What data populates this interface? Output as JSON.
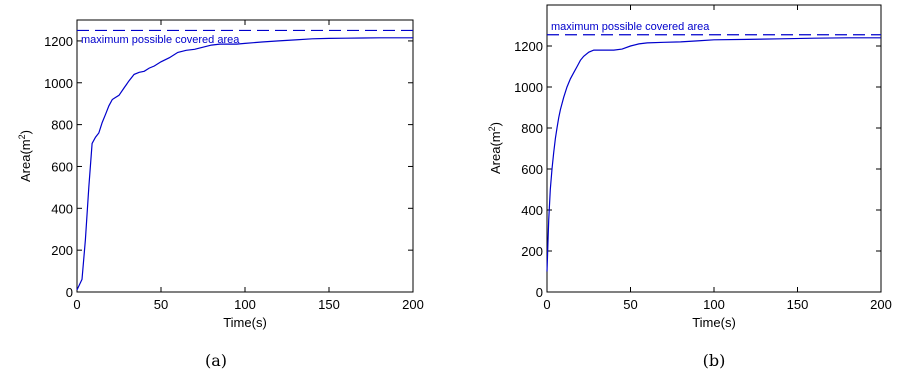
{
  "colors": {
    "series": "#0000cc",
    "axes": "#000000"
  },
  "chart_data": [
    {
      "type": "line",
      "caption": "(a)",
      "xlabel": "Time(s)",
      "ylabel": "Area(m",
      "ylabel_sup": "2",
      "ylabel_close": ")",
      "xlim": [
        0,
        200
      ],
      "ylim": [
        0,
        1300
      ],
      "xticks": [
        0,
        50,
        100,
        150,
        200
      ],
      "yticks": [
        0,
        200,
        400,
        600,
        800,
        1000,
        1200
      ],
      "grid": false,
      "annotation": "maximum possible covered area",
      "max_area": 1250,
      "x": [
        0,
        3,
        5,
        7,
        9,
        11,
        13,
        15,
        17,
        19,
        21,
        23,
        25,
        28,
        31,
        34,
        37,
        40,
        43,
        46,
        50,
        55,
        60,
        65,
        70,
        75,
        80,
        85,
        90,
        95,
        100,
        110,
        120,
        130,
        140,
        150,
        160,
        170,
        180,
        190,
        200
      ],
      "y": [
        10,
        60,
        250,
        500,
        710,
        740,
        760,
        810,
        850,
        890,
        920,
        930,
        940,
        975,
        1010,
        1040,
        1050,
        1055,
        1070,
        1080,
        1100,
        1120,
        1145,
        1155,
        1160,
        1170,
        1180,
        1185,
        1185,
        1185,
        1188,
        1195,
        1200,
        1205,
        1210,
        1212,
        1213,
        1214,
        1215,
        1215,
        1215
      ]
    },
    {
      "type": "line",
      "caption": "(b)",
      "xlabel": "Time(s)",
      "ylabel": "Area(m",
      "ylabel_sup": "2",
      "ylabel_close": ")",
      "xlim": [
        0,
        200
      ],
      "ylim": [
        0,
        1400
      ],
      "xticks": [
        0,
        50,
        100,
        150,
        200
      ],
      "yticks": [
        0,
        200,
        400,
        600,
        800,
        1000,
        1200
      ],
      "grid": false,
      "annotation": "maximum possible covered area",
      "max_area": 1255,
      "x": [
        0,
        1,
        2,
        3,
        4,
        5,
        6,
        7,
        8,
        10,
        12,
        14,
        16,
        18,
        20,
        22,
        25,
        28,
        31,
        35,
        40,
        45,
        50,
        55,
        60,
        70,
        80,
        90,
        100,
        120,
        140,
        160,
        180,
        200
      ],
      "y": [
        100,
        350,
        500,
        600,
        680,
        750,
        800,
        850,
        890,
        950,
        1000,
        1040,
        1070,
        1100,
        1130,
        1150,
        1170,
        1180,
        1180,
        1180,
        1180,
        1185,
        1200,
        1210,
        1215,
        1218,
        1220,
        1225,
        1230,
        1232,
        1235,
        1238,
        1240,
        1240
      ]
    }
  ]
}
